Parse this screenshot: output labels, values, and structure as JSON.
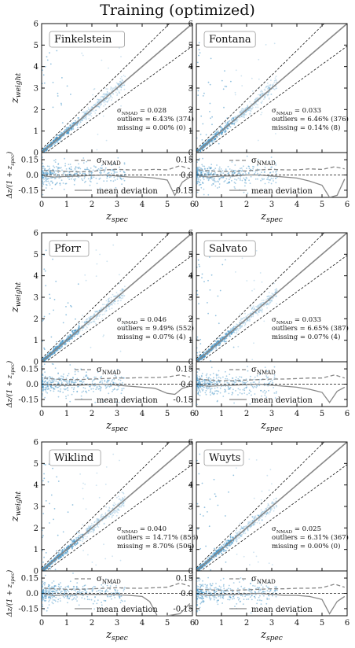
{
  "figure_title": "Training  (optimized)",
  "labels": {
    "ylabel_main": "z",
    "ylabel_main_sub": "weight",
    "ylabel_res": "Δz/(1 + z",
    "ylabel_res_sub": "spec",
    "ylabel_res_close": ")",
    "xlabel": "z",
    "xlabel_sub": "spec",
    "sigma_legend": "σ",
    "sigma_legend_sub": "NMAD",
    "mean_legend": "mean deviation",
    "stat_sigma": "σ",
    "stat_sigma_sub": "NMAD"
  },
  "chart_data": [
    {
      "type": "scatter",
      "name": "Finkelstein",
      "xlim": [
        0,
        6
      ],
      "ylim": [
        0,
        6
      ],
      "res_ylim": [
        -0.22,
        0.22
      ],
      "xticks": [
        0,
        1,
        2,
        3,
        4,
        5,
        6
      ],
      "yticks": [
        0,
        1,
        2,
        3,
        4,
        5,
        6
      ],
      "res_yticks": [
        "0.15",
        "0.0",
        "-0.15"
      ],
      "res_ytick_vals": [
        0.15,
        0.0,
        -0.15
      ],
      "sigma_nmad": "= 0.028",
      "outliers": "outliers = 6.43% (374)",
      "missing": "missing = 0.00% (0)",
      "scatter_xmax": 3.3,
      "sigma_curve": {
        "x": [
          0.1,
          0.5,
          1,
          1.5,
          2,
          2.5,
          3,
          3.5,
          4,
          4.5,
          5,
          5.5,
          5.9
        ],
        "y": [
          0.045,
          0.04,
          0.035,
          0.03,
          0.035,
          0.05,
          0.055,
          0.05,
          0.05,
          0.055,
          0.05,
          0.09,
          0.06
        ]
      },
      "mean_curve": {
        "x": [
          0.1,
          0.5,
          1,
          1.5,
          2,
          2.5,
          3,
          3.5,
          4,
          4.5,
          5,
          5.3,
          5.6,
          5.9
        ],
        "y": [
          -0.01,
          -0.02,
          -0.015,
          -0.01,
          -0.005,
          0.0,
          -0.01,
          -0.02,
          -0.02,
          -0.03,
          -0.05,
          -0.2,
          -0.07,
          -0.02
        ]
      }
    },
    {
      "type": "scatter",
      "name": "Fontana",
      "xlim": [
        0,
        6
      ],
      "ylim": [
        0,
        6
      ],
      "res_ylim": [
        -0.22,
        0.22
      ],
      "xticks": [
        0,
        1,
        2,
        3,
        4,
        5,
        6
      ],
      "yticks": [
        0,
        1,
        2,
        3,
        4,
        5,
        6
      ],
      "res_yticks": [
        "0.15",
        "0.0",
        "-0.15"
      ],
      "res_ytick_vals": [
        0.15,
        0.0,
        -0.15
      ],
      "sigma_nmad": "= 0.033",
      "outliers": "outliers = 6.46% (376)",
      "missing": "missing = 0.14% (8)",
      "scatter_xmax": 3.2,
      "sigma_curve": {
        "x": [
          0.1,
          0.5,
          1,
          1.5,
          2,
          2.5,
          3,
          3.5,
          4,
          4.5,
          5,
          5.5,
          5.9
        ],
        "y": [
          0.05,
          0.04,
          0.035,
          0.035,
          0.04,
          0.05,
          0.055,
          0.05,
          0.05,
          0.06,
          0.055,
          0.08,
          0.06
        ]
      },
      "mean_curve": {
        "x": [
          0.1,
          0.5,
          1,
          1.5,
          2,
          2.5,
          3,
          3.5,
          4,
          4.5,
          5,
          5.3,
          5.6,
          5.9
        ],
        "y": [
          -0.01,
          -0.02,
          -0.01,
          -0.01,
          0.0,
          0.0,
          -0.01,
          -0.02,
          -0.03,
          -0.06,
          -0.1,
          -0.22,
          -0.2,
          -0.04
        ]
      }
    },
    {
      "type": "scatter",
      "name": "Pforr",
      "xlim": [
        0,
        6
      ],
      "ylim": [
        0,
        6
      ],
      "res_ylim": [
        -0.22,
        0.22
      ],
      "xticks": [
        0,
        1,
        2,
        3,
        4,
        5,
        6
      ],
      "yticks": [
        0,
        1,
        2,
        3,
        4,
        5,
        6
      ],
      "res_yticks": [
        "0.15",
        "0.0",
        "-0.15"
      ],
      "res_ytick_vals": [
        0.15,
        0.0,
        -0.15
      ],
      "sigma_nmad": "= 0.046",
      "outliers": "outliers = 9.49% (552)",
      "missing": "missing = 0.07% (4)",
      "scatter_xmax": 3.3,
      "sigma_curve": {
        "x": [
          0.1,
          0.5,
          1,
          1.5,
          2,
          2.5,
          3,
          3.5,
          4,
          4.5,
          5,
          5.5,
          5.9
        ],
        "y": [
          0.06,
          0.05,
          0.045,
          0.045,
          0.05,
          0.055,
          0.06,
          0.06,
          0.065,
          0.065,
          0.07,
          0.09,
          0.07
        ]
      },
      "mean_curve": {
        "x": [
          0.1,
          0.5,
          1,
          1.5,
          2,
          2.5,
          3,
          3.5,
          4,
          4.5,
          5,
          5.3,
          5.6,
          5.9
        ],
        "y": [
          0.0,
          -0.01,
          -0.015,
          -0.01,
          -0.005,
          0.0,
          -0.01,
          -0.02,
          -0.03,
          -0.04,
          -0.09,
          -0.1,
          -0.04,
          -0.02
        ]
      }
    },
    {
      "type": "scatter",
      "name": "Salvato",
      "xlim": [
        0,
        6
      ],
      "ylim": [
        0,
        6
      ],
      "res_ylim": [
        -0.22,
        0.22
      ],
      "xticks": [
        0,
        1,
        2,
        3,
        4,
        5,
        6
      ],
      "yticks": [
        0,
        1,
        2,
        3,
        4,
        5,
        6
      ],
      "res_yticks": [
        "0.15",
        "0.0",
        "-0.15"
      ],
      "res_ytick_vals": [
        0.15,
        0.0,
        -0.15
      ],
      "sigma_nmad": "= 0.033",
      "outliers": "outliers = 6.65% (387)",
      "missing": "missing = 0.07% (4)",
      "scatter_xmax": 3.2,
      "sigma_curve": {
        "x": [
          0.1,
          0.5,
          1,
          1.5,
          2,
          2.5,
          3,
          3.5,
          4,
          4.5,
          5,
          5.5,
          5.9
        ],
        "y": [
          0.05,
          0.04,
          0.035,
          0.035,
          0.04,
          0.045,
          0.05,
          0.05,
          0.055,
          0.06,
          0.06,
          0.09,
          0.06
        ]
      },
      "mean_curve": {
        "x": [
          0.1,
          0.5,
          1,
          1.5,
          2,
          2.5,
          3,
          3.5,
          4,
          4.5,
          5,
          5.3,
          5.6,
          5.9
        ],
        "y": [
          -0.01,
          -0.02,
          -0.015,
          -0.01,
          -0.005,
          0.0,
          -0.01,
          -0.02,
          -0.03,
          -0.05,
          -0.08,
          -0.18,
          -0.07,
          -0.03
        ]
      }
    },
    {
      "type": "scatter",
      "name": "Wiklind",
      "xlim": [
        0,
        6
      ],
      "ylim": [
        0,
        6
      ],
      "res_ylim": [
        -0.22,
        0.22
      ],
      "xticks": [
        0,
        1,
        2,
        3,
        4,
        5,
        6
      ],
      "yticks": [
        0,
        1,
        2,
        3,
        4,
        5,
        6
      ],
      "res_yticks": [
        "0.15",
        "0.0",
        "-0.15"
      ],
      "res_ytick_vals": [
        0.15,
        0.0,
        -0.15
      ],
      "sigma_nmad": "= 0.040",
      "outliers": "outliers = 14.71% (856)",
      "missing": "missing = 8.70% (506)",
      "scatter_xmax": 3.3,
      "sigma_curve": {
        "x": [
          0.1,
          0.5,
          1,
          1.5,
          2,
          2.5,
          3,
          3.5,
          4,
          4.5,
          5,
          5.5,
          5.9
        ],
        "y": [
          0.05,
          0.045,
          0.04,
          0.04,
          0.045,
          0.05,
          0.055,
          0.05,
          0.05,
          0.055,
          0.06,
          0.1,
          0.07
        ]
      },
      "mean_curve": {
        "x": [
          0.1,
          0.5,
          1,
          1.5,
          2,
          2.5,
          3,
          3.5,
          4,
          4.3,
          4.6,
          5,
          5.5,
          5.9
        ],
        "y": [
          -0.01,
          -0.02,
          -0.015,
          -0.01,
          -0.01,
          -0.01,
          -0.015,
          -0.02,
          -0.03,
          -0.08,
          -0.22,
          -0.22,
          -0.2,
          -0.1
        ]
      }
    },
    {
      "type": "scatter",
      "name": "Wuyts",
      "xlim": [
        0,
        6
      ],
      "ylim": [
        0,
        6
      ],
      "res_ylim": [
        -0.22,
        0.22
      ],
      "xticks": [
        0,
        1,
        2,
        3,
        4,
        5,
        6
      ],
      "yticks": [
        0,
        1,
        2,
        3,
        4,
        5,
        6
      ],
      "res_yticks": [
        "0.15",
        "0.0",
        "-0.15"
      ],
      "res_ytick_vals": [
        0.15,
        0.0,
        -0.15
      ],
      "sigma_nmad": "= 0.025",
      "outliers": "outliers = 6.31% (367)",
      "missing": "missing = 0.00% (0)",
      "scatter_xmax": 3.2,
      "sigma_curve": {
        "x": [
          0.1,
          0.5,
          1,
          1.5,
          2,
          2.5,
          3,
          3.5,
          4,
          4.5,
          5,
          5.5,
          5.9
        ],
        "y": [
          0.04,
          0.035,
          0.03,
          0.03,
          0.035,
          0.04,
          0.045,
          0.045,
          0.05,
          0.05,
          0.055,
          0.09,
          0.06
        ]
      },
      "mean_curve": {
        "x": [
          0.1,
          0.5,
          1,
          1.5,
          2,
          2.5,
          3,
          3.5,
          4,
          4.5,
          5,
          5.3,
          5.6,
          5.9
        ],
        "y": [
          -0.01,
          -0.02,
          -0.015,
          -0.01,
          -0.005,
          0.0,
          -0.01,
          -0.02,
          -0.02,
          -0.03,
          -0.06,
          -0.2,
          -0.08,
          -0.03
        ]
      }
    }
  ]
}
